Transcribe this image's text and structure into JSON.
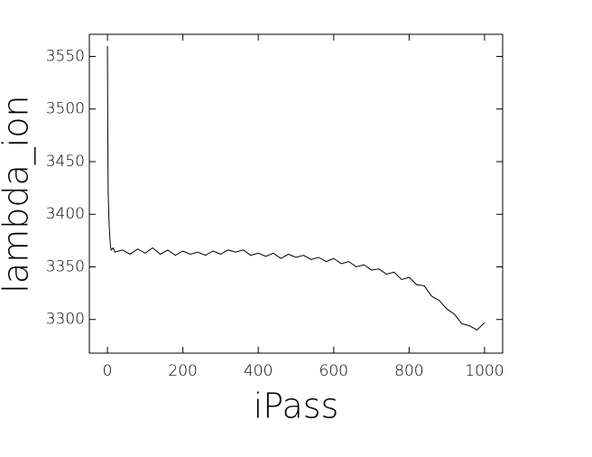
{
  "chart_data": {
    "type": "line",
    "xlabel": "iPass",
    "ylabel": "lambda_ion",
    "color": "#000000",
    "x": [
      0,
      1,
      2,
      4,
      6,
      8,
      10,
      15,
      20,
      40,
      60,
      80,
      100,
      120,
      140,
      160,
      180,
      200,
      220,
      240,
      260,
      280,
      300,
      320,
      340,
      360,
      380,
      400,
      420,
      440,
      460,
      480,
      500,
      520,
      540,
      560,
      580,
      600,
      620,
      640,
      660,
      680,
      700,
      720,
      740,
      760,
      780,
      800,
      820,
      840,
      860,
      880,
      900,
      920,
      940,
      960,
      980,
      1000
    ],
    "values": [
      3560,
      3470,
      3420,
      3395,
      3380,
      3370,
      3366,
      3368,
      3364,
      3366,
      3362,
      3367,
      3363,
      3368,
      3362,
      3366,
      3361,
      3365,
      3362,
      3364,
      3361,
      3365,
      3362,
      3366,
      3364,
      3366,
      3361,
      3363,
      3360,
      3363,
      3358,
      3362,
      3359,
      3361,
      3357,
      3359,
      3355,
      3358,
      3353,
      3355,
      3350,
      3352,
      3347,
      3348,
      3343,
      3345,
      3338,
      3340,
      3333,
      3332,
      3322,
      3318,
      3310,
      3305,
      3296,
      3294,
      3290,
      3297
    ],
    "xlim": [
      -48,
      1048
    ],
    "ylim": [
      3268,
      3571
    ],
    "xticks": [
      0,
      200,
      400,
      600,
      800,
      1000
    ],
    "yticks": [
      3300,
      3350,
      3400,
      3450,
      3500,
      3550
    ]
  }
}
